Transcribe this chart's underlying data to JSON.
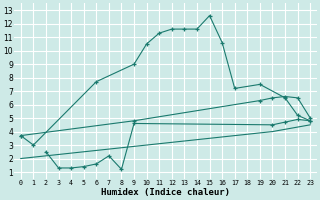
{
  "bg_color": "#ceeae7",
  "grid_color": "#ffffff",
  "line_color": "#1a7a6e",
  "xlabel": "Humidex (Indice chaleur)",
  "xlim": [
    -0.5,
    23.5
  ],
  "ylim": [
    0.5,
    13.5
  ],
  "xticks": [
    0,
    1,
    2,
    3,
    4,
    5,
    6,
    7,
    8,
    9,
    10,
    11,
    12,
    13,
    14,
    15,
    16,
    17,
    18,
    19,
    20,
    21,
    22,
    23
  ],
  "yticks": [
    1,
    2,
    3,
    4,
    5,
    6,
    7,
    8,
    9,
    10,
    11,
    12,
    13
  ],
  "series": [
    {
      "x": [
        0,
        1,
        6,
        9,
        10,
        11,
        12,
        13,
        14,
        15,
        16,
        17,
        19,
        21,
        22,
        23
      ],
      "y": [
        3.7,
        3.0,
        7.7,
        9.0,
        10.5,
        11.3,
        11.6,
        11.6,
        11.6,
        12.6,
        10.6,
        7.2,
        7.5,
        6.5,
        5.2,
        4.8
      ],
      "has_markers": true
    },
    {
      "x": [
        0,
        9,
        19,
        20,
        21,
        22,
        23
      ],
      "y": [
        3.7,
        4.8,
        6.3,
        6.5,
        6.6,
        6.5,
        5.0
      ],
      "has_markers": true
    },
    {
      "x": [
        2,
        3,
        4,
        5,
        6,
        7,
        8,
        9,
        20,
        21,
        22,
        23
      ],
      "y": [
        2.5,
        1.3,
        1.3,
        1.4,
        1.6,
        2.2,
        1.2,
        4.6,
        4.5,
        4.7,
        4.9,
        4.8
      ],
      "has_markers": true
    },
    {
      "x": [
        0,
        5,
        10,
        15,
        20,
        23
      ],
      "y": [
        2.0,
        2.5,
        3.0,
        3.5,
        4.0,
        4.5
      ],
      "has_markers": false
    }
  ]
}
